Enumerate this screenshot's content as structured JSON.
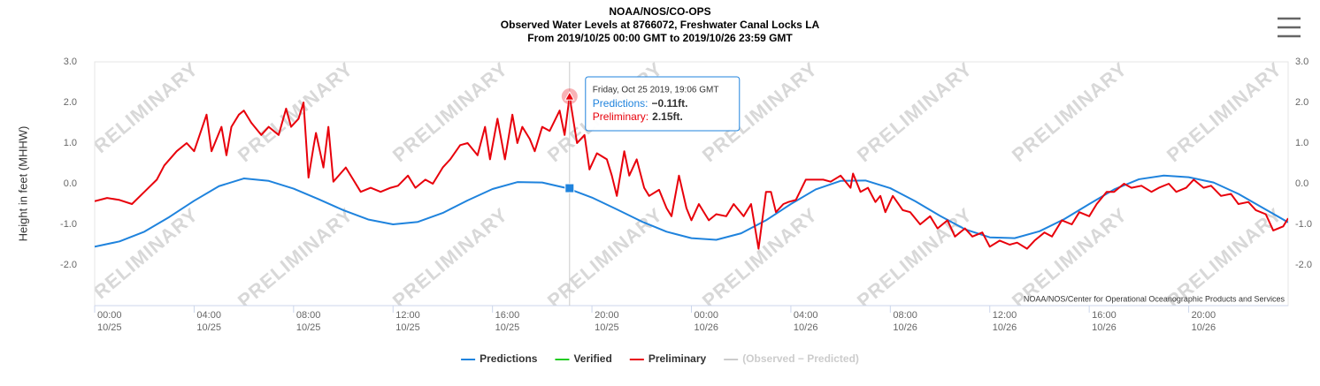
{
  "chart_data": {
    "type": "line",
    "title": "NOAA/NOS/CO-OPS",
    "subtitle": "Observed Water Levels at 8766072, Freshwater Canal Locks LA",
    "subtitle2": "From 2019/10/25 00:00 GMT to 2019/10/26 23:59 GMT",
    "y_label": "Height in feet (MHHW)",
    "credits": "NOAA/NOS/Center for Operational Oceanographic Products and Services",
    "watermark": "PRELIMINARY",
    "xlim": [
      0,
      48
    ],
    "ylim": [
      -3,
      3
    ],
    "yticks": [
      {
        "value": -2,
        "label": "-2.0"
      },
      {
        "value": -1,
        "label": "-1.0"
      },
      {
        "value": 0,
        "label": "0.0"
      },
      {
        "value": 1,
        "label": "1.0"
      },
      {
        "value": 2,
        "label": "2.0"
      },
      {
        "value": 3,
        "label": "3.0"
      }
    ],
    "xticks": [
      {
        "value": 0,
        "label": "00:00"
      },
      {
        "value": 4,
        "label": "04:00"
      },
      {
        "value": 8,
        "label": "08:00"
      },
      {
        "value": 12,
        "label": "12:00"
      },
      {
        "value": 16,
        "label": "16:00"
      },
      {
        "value": 20,
        "label": "20:00"
      },
      {
        "value": 24,
        "label": "00:00"
      },
      {
        "value": 28,
        "label": "04:00"
      },
      {
        "value": 32,
        "label": "08:00"
      },
      {
        "value": 36,
        "label": "12:00"
      },
      {
        "value": 40,
        "label": "16:00"
      },
      {
        "value": 44,
        "label": "20:00"
      }
    ],
    "xtick_dates": [
      "10/25",
      "10/25",
      "10/25",
      "10/25",
      "10/25",
      "10/25",
      "10/26",
      "10/26",
      "10/26",
      "10/26",
      "10/26",
      "10/26"
    ],
    "grid": false,
    "legend": "bottom",
    "series": [
      {
        "name": "Predictions",
        "color": "#1f83dd",
        "x": [
          0,
          1,
          2,
          3,
          4,
          5,
          6,
          7,
          8,
          9,
          10,
          11,
          12,
          13,
          14,
          15,
          16,
          17,
          18,
          19,
          20,
          21,
          22,
          23,
          24,
          25,
          26,
          27,
          28,
          29,
          30,
          31,
          32,
          33,
          34,
          35,
          36,
          37,
          38,
          39,
          40,
          41,
          42,
          43,
          44,
          45,
          46,
          47,
          48
        ],
        "values": [
          -1.55,
          -1.42,
          -1.18,
          -0.82,
          -0.42,
          -0.06,
          0.13,
          0.07,
          -0.12,
          -0.38,
          -0.65,
          -0.88,
          -1.0,
          -0.94,
          -0.72,
          -0.41,
          -0.13,
          0.04,
          0.03,
          -0.11,
          -0.34,
          -0.63,
          -0.93,
          -1.18,
          -1.34,
          -1.38,
          -1.22,
          -0.9,
          -0.5,
          -0.14,
          0.07,
          0.08,
          -0.11,
          -0.43,
          -0.79,
          -1.12,
          -1.32,
          -1.34,
          -1.17,
          -0.87,
          -0.5,
          -0.14,
          0.11,
          0.2,
          0.16,
          0.03,
          -0.25,
          -0.6,
          -0.95
        ]
      },
      {
        "name": "Verified",
        "color": "#22cc22",
        "x": [],
        "values": []
      },
      {
        "name": "Preliminary",
        "color": "#e8000b",
        "x": [
          0,
          0.5,
          1.0,
          1.5,
          2.0,
          2.5,
          2.8,
          3.3,
          3.7,
          4.0,
          4.5,
          4.7,
          5.1,
          5.3,
          5.5,
          5.8,
          6.0,
          6.3,
          6.7,
          7.0,
          7.4,
          7.7,
          7.9,
          8.2,
          8.4,
          8.6,
          8.8,
          8.9,
          9.2,
          9.4,
          9.6,
          10.1,
          10.4,
          10.7,
          11.1,
          11.5,
          11.9,
          12.2,
          12.6,
          12.9,
          13.3,
          13.6,
          14.0,
          14.3,
          14.7,
          15.0,
          15.4,
          15.7,
          15.9,
          16.2,
          16.5,
          16.8,
          17.0,
          17.2,
          17.5,
          17.7,
          18.0,
          18.3,
          18.7,
          18.9,
          19.1,
          19.4,
          19.7,
          19.9,
          20.2,
          20.6,
          20.8,
          21.0,
          21.3,
          21.5,
          21.8,
          22.1,
          22.3,
          22.7,
          23.0,
          23.2,
          23.5,
          23.8,
          24.0,
          24.3,
          24.7,
          25.0,
          25.4,
          25.7,
          26.1,
          26.4,
          26.7,
          27.0,
          27.2,
          27.4,
          27.7,
          27.9,
          28.2,
          28.6,
          28.9,
          29.3,
          29.6,
          30.0,
          30.4,
          30.5,
          30.8,
          31.1,
          31.4,
          31.6,
          31.8,
          32.1,
          32.5,
          32.8,
          33.2,
          33.6,
          33.9,
          34.3,
          34.6,
          35.0,
          35.3,
          35.7,
          36.0,
          36.4,
          36.8,
          37.1,
          37.5,
          37.8,
          38.2,
          38.5,
          38.9,
          39.3,
          39.6,
          40.0,
          40.3,
          40.7,
          41.0,
          41.4,
          41.7,
          42.1,
          42.5,
          42.8,
          43.2,
          43.5,
          43.9,
          44.2,
          44.6,
          44.9,
          45.3,
          45.7,
          46.0,
          46.4,
          46.7,
          47.1,
          47.4,
          47.8,
          48.0
        ],
        "values": [
          -0.43,
          -0.35,
          -0.4,
          -0.5,
          -0.2,
          0.1,
          0.45,
          0.8,
          1.0,
          0.8,
          1.7,
          0.8,
          1.4,
          0.7,
          1.4,
          1.7,
          1.8,
          1.5,
          1.2,
          1.4,
          1.2,
          1.85,
          1.4,
          1.6,
          2.0,
          0.15,
          0.9,
          1.25,
          0.4,
          1.4,
          0.05,
          0.4,
          0.1,
          -0.2,
          -0.1,
          -0.2,
          -0.1,
          -0.05,
          0.2,
          -0.1,
          0.1,
          0.0,
          0.4,
          0.6,
          0.95,
          1.0,
          0.7,
          1.4,
          0.6,
          1.6,
          0.6,
          1.7,
          1.0,
          1.4,
          1.1,
          0.8,
          1.4,
          1.3,
          1.8,
          1.2,
          2.15,
          1.0,
          1.2,
          0.35,
          0.75,
          0.6,
          0.2,
          -0.3,
          0.8,
          0.2,
          0.6,
          -0.1,
          -0.3,
          -0.15,
          -0.6,
          -0.8,
          0.2,
          -0.6,
          -0.9,
          -0.5,
          -0.9,
          -0.75,
          -0.8,
          -0.5,
          -0.8,
          -0.5,
          -1.6,
          -0.2,
          -0.2,
          -0.7,
          -0.5,
          -0.45,
          -0.4,
          0.1,
          0.1,
          0.1,
          0.05,
          0.2,
          -0.1,
          0.25,
          -0.2,
          -0.1,
          -0.45,
          -0.3,
          -0.7,
          -0.3,
          -0.65,
          -0.7,
          -1.0,
          -0.8,
          -1.1,
          -0.9,
          -1.3,
          -1.1,
          -1.3,
          -1.2,
          -1.55,
          -1.4,
          -1.5,
          -1.45,
          -1.6,
          -1.4,
          -1.2,
          -1.3,
          -0.9,
          -1.0,
          -0.7,
          -0.8,
          -0.5,
          -0.2,
          -0.2,
          0.0,
          -0.1,
          -0.05,
          -0.2,
          -0.1,
          0.0,
          -0.2,
          -0.1,
          0.1,
          -0.1,
          -0.05,
          -0.3,
          -0.25,
          -0.5,
          -0.45,
          -0.65,
          -0.75,
          -1.15,
          -1.05,
          -0.85
        ]
      },
      {
        "name": "(Observed − Predicted)",
        "color": "#cccccc",
        "x": [],
        "values": [],
        "visible": false
      }
    ],
    "tooltip": {
      "x": 19.1,
      "header": "Friday, Oct 25 2019, 19:06 GMT",
      "items": [
        {
          "series": 0,
          "name": "Predictions:",
          "value": -0.11,
          "value_label": "−0.11ft."
        },
        {
          "series": 2,
          "name": "Preliminary:",
          "value": 2.15,
          "value_label": "2.15ft."
        }
      ]
    }
  }
}
